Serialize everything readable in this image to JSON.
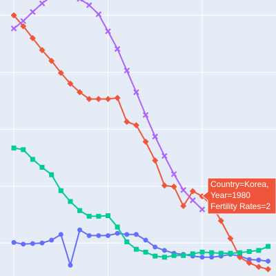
{
  "chart_data": {
    "type": "line",
    "x": [
      1960,
      1961,
      1962,
      1963,
      1964,
      1965,
      1966,
      1967,
      1968,
      1969,
      1970,
      1971,
      1972,
      1973,
      1974,
      1975,
      1976,
      1977,
      1978,
      1979,
      1980,
      1981,
      1982,
      1983,
      1984,
      1985,
      1986,
      1987
    ],
    "series": [
      {
        "color": "#636efa",
        "marker": "circle",
        "values": [
          2.01,
          1.98,
          1.99,
          2.0,
          2.05,
          2.15,
          1.61,
          2.23,
          2.13,
          2.13,
          2.13,
          2.17,
          2.15,
          2.15,
          2.05,
          1.93,
          1.87,
          1.82,
          1.8,
          1.77,
          1.75,
          1.75,
          1.77,
          1.8,
          1.77,
          1.71,
          1.7,
          1.68
        ]
      },
      {
        "color": "#EF553B",
        "marker": "diamond",
        "values": [
          6.0,
          5.81,
          5.6,
          5.39,
          5.2,
          4.99,
          4.8,
          4.65,
          4.53,
          4.53,
          4.53,
          4.55,
          4.13,
          4.07,
          3.78,
          3.45,
          3.01,
          2.99,
          2.65,
          2.91,
          2.82,
          2.67,
          2.39,
          2.08,
          1.75,
          1.65,
          1.58,
          1.54
        ]
      },
      {
        "color": "#00cc96",
        "marker": "square",
        "values": [
          3.67,
          3.64,
          3.47,
          3.33,
          3.2,
          2.92,
          2.73,
          2.57,
          2.47,
          2.47,
          2.48,
          2.28,
          2.02,
          1.89,
          1.84,
          1.77,
          1.75,
          1.78,
          1.78,
          1.81,
          1.84,
          1.83,
          1.82,
          1.82,
          1.83,
          1.85,
          1.87,
          1.94
        ]
      },
      {
        "color": "#ab63fa",
        "marker": "x",
        "values": [
          5.77,
          5.9,
          6.06,
          6.21,
          6.33,
          6.41,
          6.39,
          6.29,
          6.18,
          6.02,
          5.72,
          5.41,
          5.03,
          4.65,
          4.25,
          3.87,
          3.53,
          3.21,
          2.93,
          2.75,
          2.59,
          null,
          null,
          null,
          null,
          null,
          null,
          null
        ]
      }
    ],
    "xlim": [
      1958.53,
      1987.84
    ],
    "xticks": [
      1960,
      1970,
      1980
    ],
    "ylim": [
      1.42,
      6.27
    ],
    "yticks": [
      2,
      3,
      4,
      5,
      6
    ],
    "grid": true,
    "tooltip": {
      "lines": [
        "Country=Korea,",
        "Year=1980",
        "Fertility Rates=2"
      ]
    }
  }
}
